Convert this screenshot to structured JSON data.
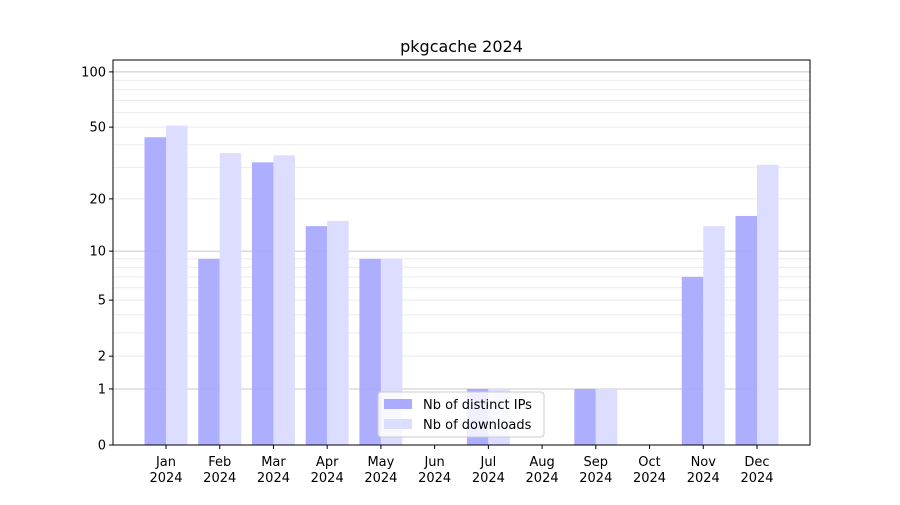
{
  "chart_data": {
    "type": "bar",
    "title": "pkgcache 2024",
    "xlabel": "",
    "ylabel": "",
    "yscale": "log(1+y)",
    "ylim": [
      0,
      116
    ],
    "yticks": [
      0,
      1,
      2,
      5,
      10,
      20,
      50,
      100
    ],
    "ytick_labels": [
      "0",
      "1",
      "2",
      "5",
      "10",
      "20",
      "50",
      "100"
    ],
    "grid": true,
    "legend_position": "bottom-center",
    "categories": [
      "Jan\n2024",
      "Feb\n2024",
      "Mar\n2024",
      "Apr\n2024",
      "May\n2024",
      "Jun\n2024",
      "Jul\n2024",
      "Aug\n2024",
      "Sep\n2024",
      "Oct\n2024",
      "Nov\n2024",
      "Dec\n2024"
    ],
    "series": [
      {
        "name": "Nb of distinct IPs",
        "color": "#aaaaff",
        "values": [
          44,
          9,
          32,
          14,
          9,
          0,
          1,
          0,
          1,
          0,
          7,
          16
        ]
      },
      {
        "name": "Nb of downloads",
        "color": "#ddddff",
        "values": [
          51,
          36,
          35,
          15,
          9,
          0,
          1,
          0,
          1,
          0,
          14,
          31
        ]
      }
    ]
  }
}
